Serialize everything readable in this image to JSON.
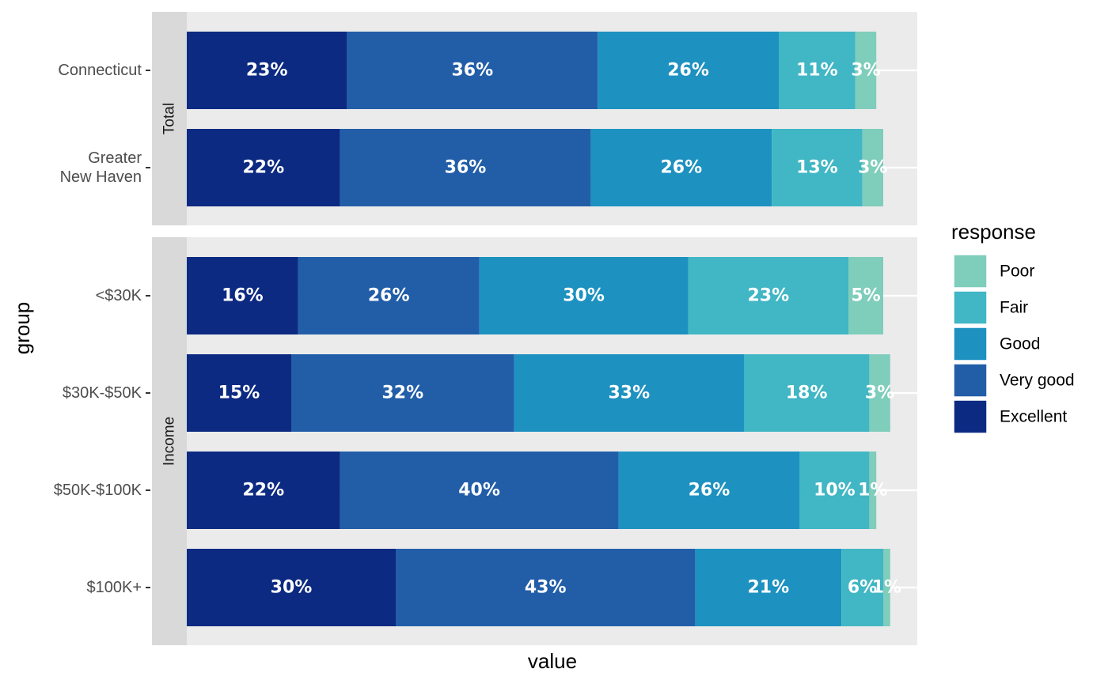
{
  "chart_data": {
    "type": "bar",
    "orientation": "horizontal",
    "stacked": true,
    "xlabel": "value",
    "ylabel": "group",
    "legend": {
      "title": "response",
      "placement": "right",
      "entries": [
        "Poor",
        "Fair",
        "Good",
        "Very good",
        "Excellent"
      ]
    },
    "colors": {
      "Excellent": "#0c2a82",
      "Very good": "#225ea8",
      "Good": "#1d91c0",
      "Fair": "#41b6c4",
      "Poor": "#7fcdbb",
      "panel_bg": "#ebebeb",
      "strip_bg": "#d9d9d9"
    },
    "stack_order": [
      "Excellent",
      "Very good",
      "Good",
      "Fair",
      "Poor"
    ],
    "facets": [
      {
        "name": "Total",
        "groups": [
          {
            "label": "Connecticut",
            "values": {
              "Excellent": 23,
              "Very good": 36,
              "Good": 26,
              "Fair": 11,
              "Poor": 3
            }
          },
          {
            "label": "Greater\nNew Haven",
            "values": {
              "Excellent": 22,
              "Very good": 36,
              "Good": 26,
              "Fair": 13,
              "Poor": 3
            }
          }
        ]
      },
      {
        "name": "Income",
        "groups": [
          {
            "label": "<$30K",
            "values": {
              "Excellent": 16,
              "Very good": 26,
              "Good": 30,
              "Fair": 23,
              "Poor": 5
            }
          },
          {
            "label": "$30K-$50K",
            "values": {
              "Excellent": 15,
              "Very good": 32,
              "Good": 33,
              "Fair": 18,
              "Poor": 3
            }
          },
          {
            "label": "$50K-$100K",
            "values": {
              "Excellent": 22,
              "Very good": 40,
              "Good": 26,
              "Fair": 10,
              "Poor": 1
            }
          },
          {
            "label": "$100K+",
            "values": {
              "Excellent": 30,
              "Very good": 43,
              "Good": 21,
              "Fair": 6,
              "Poor": 1
            }
          }
        ]
      }
    ]
  }
}
